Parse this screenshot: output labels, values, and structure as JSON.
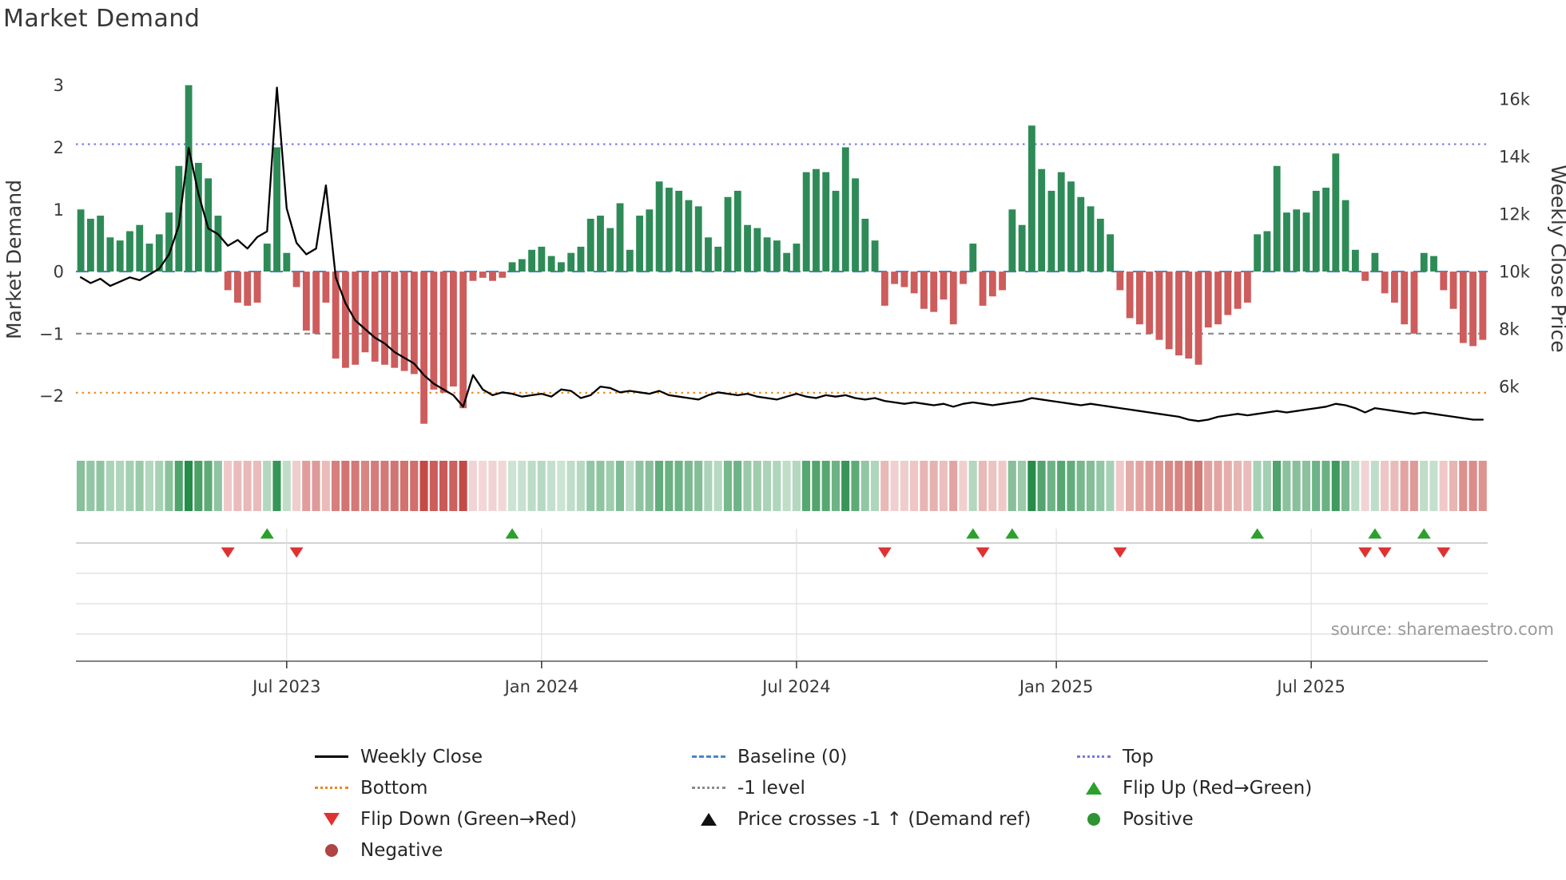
{
  "title": "Market Demand",
  "source": "source: sharemaestro.com",
  "axes": {
    "left_label": "Market Demand",
    "right_label": "Weekly Close Price",
    "left_range": [
      -2.75,
      3.15
    ],
    "left_ticks": [
      {
        "label": "3",
        "value": 3
      },
      {
        "label": "2",
        "value": 2
      },
      {
        "label": "1",
        "value": 1
      },
      {
        "label": "0",
        "value": 0
      },
      {
        "label": "−1",
        "value": -1
      },
      {
        "label": "−2",
        "value": -2
      }
    ],
    "right_ticks": [
      {
        "label": "16k",
        "value": 16000
      },
      {
        "label": "14k",
        "value": 14000
      },
      {
        "label": "12k",
        "value": 12000
      },
      {
        "label": "10k",
        "value": 10000
      },
      {
        "label": "8k",
        "value": 8000
      },
      {
        "label": "6k",
        "value": 6000
      }
    ],
    "x_ticks": [
      {
        "label": "Jul 2023",
        "week": 21
      },
      {
        "label": "Jan 2024",
        "week": 47
      },
      {
        "label": "Jul 2024",
        "week": 73
      },
      {
        "label": "Jan 2025",
        "week": 99.5
      },
      {
        "label": "Jul 2025",
        "week": 125.5
      }
    ]
  },
  "chart_data": {
    "type": "combo-bar-line-heatmap",
    "x_unit": "week-index",
    "series": [
      {
        "name": "Market Demand",
        "type": "bar",
        "axis": "left",
        "values": [
          1.0,
          0.85,
          0.9,
          0.55,
          0.5,
          0.65,
          0.75,
          0.45,
          0.6,
          0.95,
          1.7,
          3.0,
          1.75,
          1.5,
          0.9,
          -0.3,
          -0.5,
          -0.55,
          -0.5,
          0.45,
          2.0,
          0.3,
          -0.25,
          -0.95,
          -1.0,
          -0.5,
          -1.4,
          -1.55,
          -1.5,
          -1.3,
          -1.45,
          -1.5,
          -1.55,
          -1.6,
          -1.65,
          -2.45,
          -1.9,
          -1.95,
          -1.85,
          -2.2,
          -0.15,
          -0.1,
          -0.15,
          -0.1,
          0.15,
          0.2,
          0.35,
          0.4,
          0.25,
          0.15,
          0.3,
          0.4,
          0.85,
          0.9,
          0.7,
          1.1,
          0.35,
          0.9,
          1.0,
          1.45,
          1.35,
          1.3,
          1.15,
          1.05,
          0.55,
          0.4,
          1.2,
          1.3,
          0.75,
          0.7,
          0.55,
          0.5,
          0.3,
          0.45,
          1.6,
          1.65,
          1.6,
          1.3,
          2.0,
          1.5,
          0.85,
          0.5,
          -0.55,
          -0.2,
          -0.25,
          -0.35,
          -0.6,
          -0.65,
          -0.45,
          -0.85,
          -0.2,
          0.45,
          -0.55,
          -0.4,
          -0.3,
          1.0,
          0.75,
          2.35,
          1.65,
          1.3,
          1.6,
          1.45,
          1.2,
          1.05,
          0.85,
          0.6,
          -0.3,
          -0.75,
          -0.85,
          -1.0,
          -1.1,
          -1.25,
          -1.35,
          -1.4,
          -1.5,
          -0.9,
          -0.85,
          -0.7,
          -0.6,
          -0.5,
          0.6,
          0.65,
          1.7,
          0.95,
          1.0,
          0.95,
          1.3,
          1.35,
          1.9,
          1.15,
          0.35,
          -0.15,
          0.3,
          -0.35,
          -0.5,
          -0.85,
          -1.0,
          0.3,
          0.25,
          -0.3,
          -0.6,
          -1.15,
          -1.2,
          -1.1
        ]
      },
      {
        "name": "Weekly Close",
        "type": "line",
        "axis": "right",
        "values": [
          9800,
          9600,
          9750,
          9500,
          9650,
          9800,
          9700,
          9900,
          10100,
          10600,
          11600,
          14300,
          12700,
          11500,
          11300,
          10900,
          11100,
          10800,
          11200,
          11400,
          16400,
          12200,
          11000,
          10600,
          10800,
          13000,
          9800,
          8900,
          8300,
          8000,
          7700,
          7500,
          7200,
          7000,
          6800,
          6400,
          6100,
          5900,
          5700,
          5300,
          6400,
          5900,
          5700,
          5800,
          5750,
          5650,
          5700,
          5750,
          5650,
          5900,
          5850,
          5600,
          5700,
          6000,
          5950,
          5800,
          5850,
          5800,
          5750,
          5850,
          5700,
          5650,
          5600,
          5550,
          5700,
          5800,
          5750,
          5700,
          5750,
          5650,
          5600,
          5550,
          5650,
          5750,
          5650,
          5600,
          5700,
          5650,
          5700,
          5600,
          5550,
          5600,
          5500,
          5450,
          5400,
          5450,
          5400,
          5350,
          5400,
          5300,
          5400,
          5450,
          5400,
          5350,
          5400,
          5450,
          5500,
          5600,
          5550,
          5500,
          5450,
          5400,
          5350,
          5400,
          5350,
          5300,
          5250,
          5200,
          5150,
          5100,
          5050,
          5000,
          4950,
          4850,
          4800,
          4850,
          4950,
          5000,
          5050,
          5000,
          5050,
          5100,
          5150,
          5100,
          5150,
          5200,
          5250,
          5300,
          5400,
          5350,
          5250,
          5100,
          5250,
          5200,
          5150,
          5100,
          5050,
          5100,
          5050,
          5000,
          4950,
          4900,
          4850,
          4850
        ]
      }
    ],
    "reference_lines": [
      {
        "name": "Top",
        "value": 2.05,
        "style": "dotted",
        "color": "#7878dc"
      },
      {
        "name": "Baseline (0)",
        "value": 0,
        "style": "dashed",
        "color": "#4a86c8"
      },
      {
        "name": "-1 level",
        "value": -1,
        "style": "dashed-fine",
        "color": "#8a8a8a"
      },
      {
        "name": "Bottom",
        "value": -1.95,
        "style": "dotted",
        "color": "#e8891d"
      }
    ],
    "markers": {
      "flip_up_weeks": [
        19,
        44,
        91,
        95,
        120,
        132,
        137
      ],
      "flip_down_weeks": [
        15,
        22,
        82,
        92,
        106,
        131,
        133,
        139
      ],
      "price_cross_up_weeks": []
    },
    "colors": {
      "positive_bar": "#2e8b57",
      "negative_bar": "#cd5c5c",
      "price_line": "#000000",
      "flip_up": "#2ca02c",
      "flip_down": "#e03131",
      "heatmap_positive_rgb": "34,139,69",
      "heatmap_negative_rgb": "195,70,66"
    }
  },
  "legend": {
    "columns": [
      [
        {
          "label": "Weekly Close",
          "swatch": "line",
          "color": "#000000"
        },
        {
          "label": "Bottom",
          "swatch": "dotted",
          "color": "#e8891d"
        },
        {
          "label": "Flip Down (Green→Red)",
          "swatch": "triangle-down",
          "color": "#e03131"
        },
        {
          "label": "Negative",
          "swatch": "circle",
          "color": "#b04343"
        }
      ],
      [
        {
          "label": "Baseline (0)",
          "swatch": "dashed",
          "color": "#4a86c8"
        },
        {
          "label": "-1 level",
          "swatch": "dashed-fine",
          "color": "#8a8a8a"
        },
        {
          "label": "Price crosses -1 ↑ (Demand ref)",
          "swatch": "triangle-up",
          "color": "#111111"
        }
      ],
      [
        {
          "label": "Top",
          "swatch": "dotted",
          "color": "#7878dc"
        },
        {
          "label": "Flip Up (Red→Green)",
          "swatch": "triangle-up",
          "color": "#2ca02c"
        },
        {
          "label": "Positive",
          "swatch": "circle",
          "color": "#2e9333"
        }
      ]
    ]
  }
}
